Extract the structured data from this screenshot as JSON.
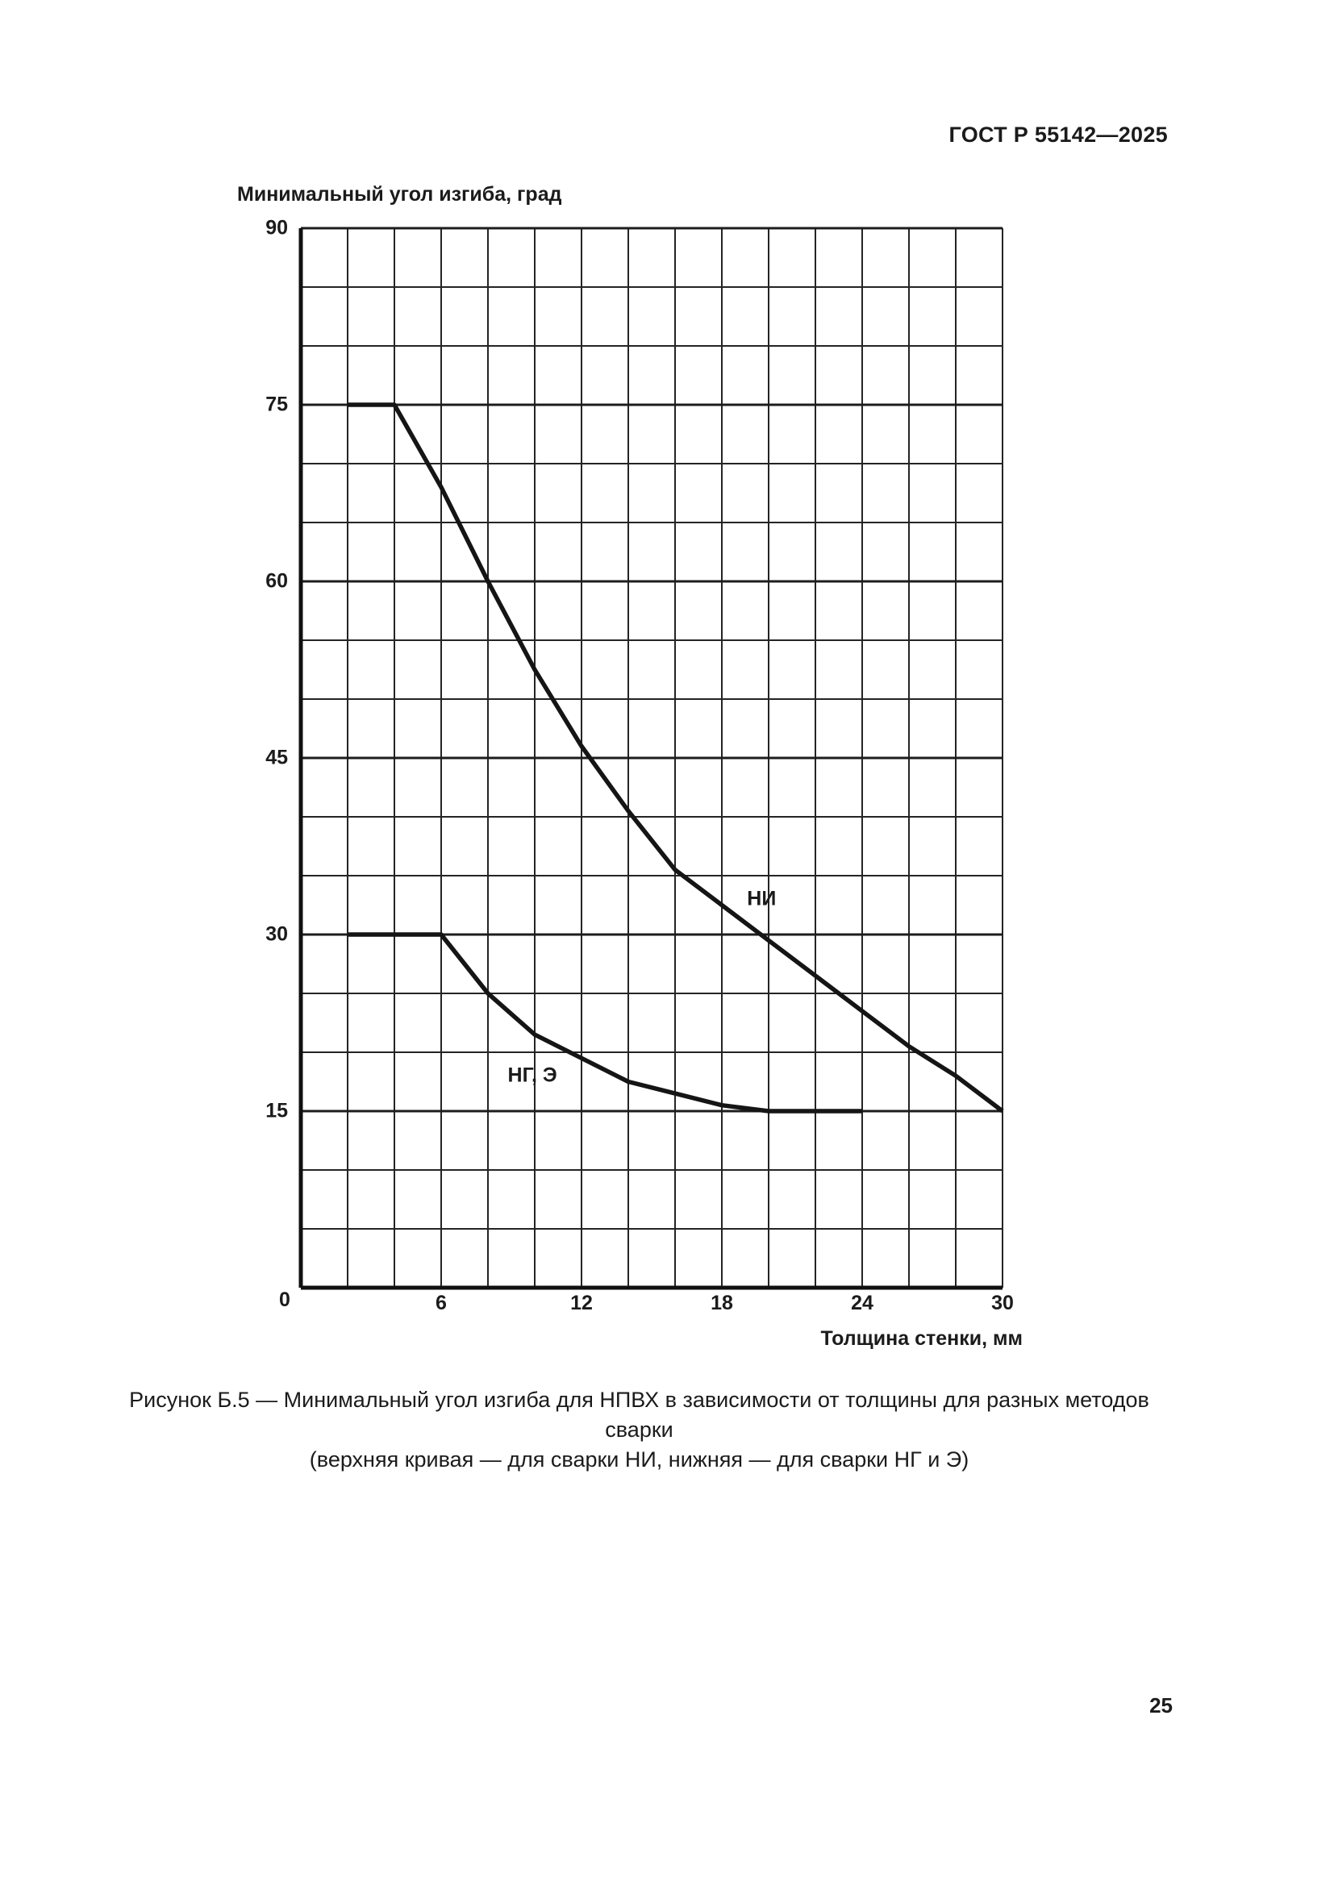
{
  "page": {
    "header": "ГОСТ Р 55142—2025",
    "caption_line1": "Рисунок Б.5 — Минимальный угол изгиба для НПВХ в зависимости от толщины для разных методов сварки",
    "caption_line2": "(верхняя кривая — для сварки НИ, нижняя — для сварки НГ и Э)",
    "page_number": "25"
  },
  "chart_data": {
    "type": "line",
    "title": "",
    "ylabel": "Минимальный угол изгиба, град",
    "xlabel": "Толщина стенки, мм",
    "xlim": [
      0,
      30
    ],
    "ylim": [
      0,
      90
    ],
    "x_grid_step": 2,
    "y_grid_step": 5,
    "x_major_ticks": [
      0,
      6,
      12,
      18,
      24,
      30
    ],
    "y_major_ticks": [
      0,
      15,
      30,
      45,
      60,
      75,
      90
    ],
    "grid": true,
    "legend_position": "inline-labels",
    "line_color": "#151515",
    "series": [
      {
        "name": "НИ",
        "x": [
          2,
          4,
          6,
          8,
          10,
          12,
          14,
          16,
          18,
          20,
          22,
          24,
          26,
          28,
          30
        ],
        "y": [
          75,
          75,
          68,
          60,
          52.5,
          46,
          40.5,
          35.5,
          32.5,
          29.5,
          26.5,
          23.5,
          20.5,
          18,
          15
        ],
        "label": {
          "text": "НИ",
          "x": 19.7,
          "y": 33
        }
      },
      {
        "name": "НГ, Э",
        "x": [
          2,
          4,
          6,
          8,
          10,
          12,
          14,
          16,
          18,
          20,
          22,
          24
        ],
        "y": [
          30,
          30,
          30,
          25,
          21.5,
          19.5,
          17.5,
          16.5,
          15.5,
          15,
          15,
          15
        ],
        "label": {
          "text": "НГ, Э",
          "x": 9.9,
          "y": 18
        }
      }
    ]
  }
}
